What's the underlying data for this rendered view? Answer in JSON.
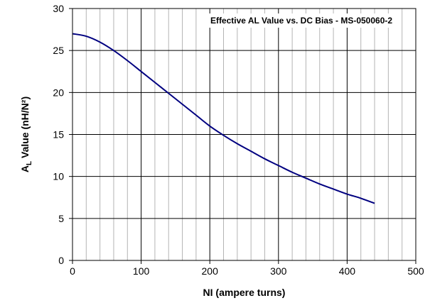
{
  "chart_data": {
    "type": "line",
    "title": "Effective AL Value vs. DC Bias - MS-050060-2",
    "xlabel": "NI (ampere turns)",
    "ylabel": {
      "main": "A",
      "sub": "L",
      "rest": " Value (nH/N²)"
    },
    "xlim": [
      0,
      500
    ],
    "ylim": [
      0,
      30
    ],
    "x_ticks": [
      "0",
      "100",
      "200",
      "300",
      "400",
      "500"
    ],
    "y_ticks": [
      "0",
      "5",
      "10",
      "15",
      "20",
      "25",
      "30"
    ],
    "grid": true,
    "minor_x_step": 20,
    "series": [
      {
        "color": "#000080",
        "x": [
          0,
          20,
          40,
          60,
          80,
          100,
          120,
          140,
          160,
          180,
          200,
          220,
          240,
          260,
          280,
          300,
          320,
          340,
          360,
          380,
          400,
          420,
          440
        ],
        "y": [
          27.0,
          26.7,
          26.0,
          25.0,
          23.8,
          22.5,
          21.2,
          19.9,
          18.6,
          17.3,
          16.0,
          14.9,
          13.9,
          13.0,
          12.1,
          11.3,
          10.5,
          9.8,
          9.1,
          8.5,
          7.9,
          7.4,
          6.8
        ]
      }
    ]
  }
}
